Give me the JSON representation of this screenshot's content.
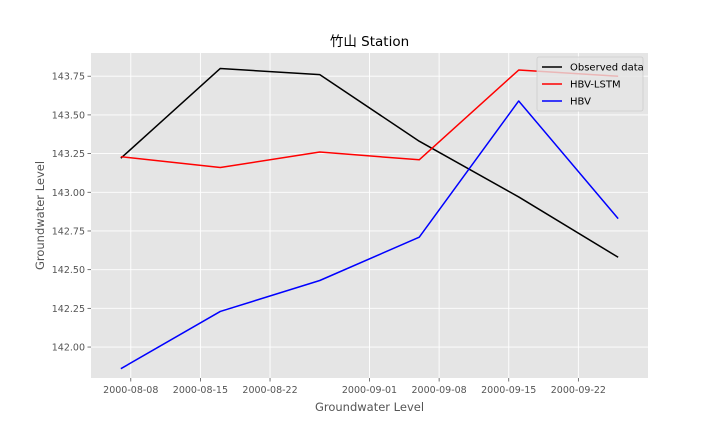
{
  "chart_data": {
    "type": "line",
    "title": "竹山 Station",
    "xlabel": "Groundwater Level",
    "ylabel": "Groundwater Level",
    "x": [
      "2000-08-07",
      "2000-08-17",
      "2000-08-27",
      "2000-09-06",
      "2000-09-16",
      "2000-09-26"
    ],
    "series": [
      {
        "name": "Observed data",
        "color": "#000000",
        "values": [
          143.22,
          143.8,
          143.76,
          143.33,
          142.97,
          142.58
        ]
      },
      {
        "name": "HBV-LSTM",
        "color": "#ff0000",
        "values": [
          143.23,
          143.16,
          143.26,
          143.21,
          143.79,
          143.75
        ]
      },
      {
        "name": "HBV",
        "color": "#0000ff",
        "values": [
          141.86,
          142.23,
          142.43,
          142.71,
          143.59,
          142.83
        ]
      }
    ],
    "ylim": [
      141.8,
      143.9
    ],
    "xlim": [
      "2000-08-04",
      "2000-09-29"
    ],
    "y_ticks": [
      142.0,
      142.25,
      142.5,
      142.75,
      143.0,
      143.25,
      143.5,
      143.75
    ],
    "y_tick_labels": [
      "142.00",
      "142.25",
      "142.50",
      "142.75",
      "143.00",
      "143.25",
      "143.50",
      "143.75"
    ],
    "x_ticks": [
      "2000-08-08",
      "2000-08-15",
      "2000-08-22",
      "2000-09-01",
      "2000-09-08",
      "2000-09-15",
      "2000-09-22"
    ],
    "grid": true,
    "legend_position": "top-right",
    "colors": {
      "plot_background": "#e5e5e5",
      "grid": "#ffffff"
    }
  }
}
